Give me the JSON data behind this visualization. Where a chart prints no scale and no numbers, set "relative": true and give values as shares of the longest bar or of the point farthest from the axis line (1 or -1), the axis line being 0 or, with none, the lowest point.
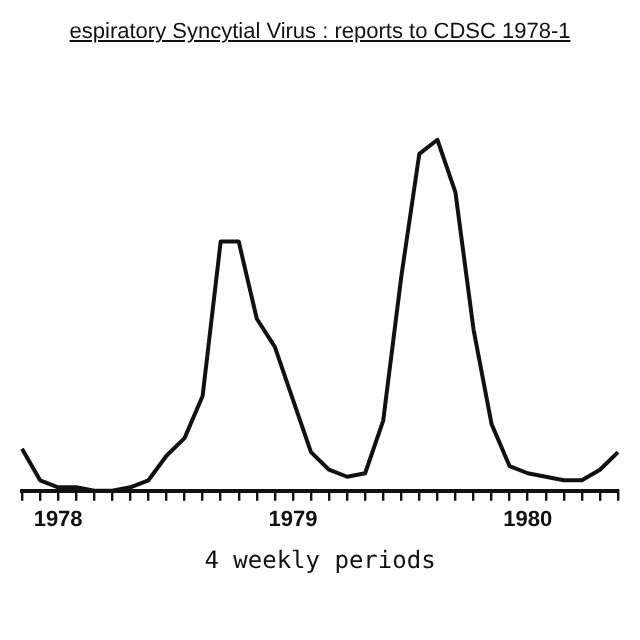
{
  "chart_data": {
    "type": "line",
    "title": "espiratory Syncytial Virus : reports to CDSC 1978-1",
    "xlabel": "4 weekly periods",
    "relative": true,
    "categories": [
      null,
      null,
      "1978",
      null,
      null,
      null,
      null,
      null,
      null,
      null,
      null,
      null,
      null,
      null,
      null,
      "1979",
      null,
      null,
      null,
      null,
      null,
      null,
      null,
      null,
      null,
      null,
      null,
      null,
      "1980",
      null,
      null,
      null,
      null,
      null
    ],
    "series": [
      {
        "color": "#111111",
        "values": [
          0.12,
          0.03,
          0.01,
          0.01,
          0,
          0,
          0.01,
          0.03,
          0.1,
          0.15,
          0.27,
          0.71,
          0.71,
          0.49,
          0.41,
          0.26,
          0.11,
          0.06,
          0.04,
          0.05,
          0.2,
          0.61,
          0.96,
          1,
          0.85,
          0.46,
          0.19,
          0.07,
          0.05,
          0.04,
          0.03,
          0.03,
          0.06,
          0.11
        ]
      }
    ],
    "legend": false,
    "marker": "none",
    "line_style": "solid"
  }
}
